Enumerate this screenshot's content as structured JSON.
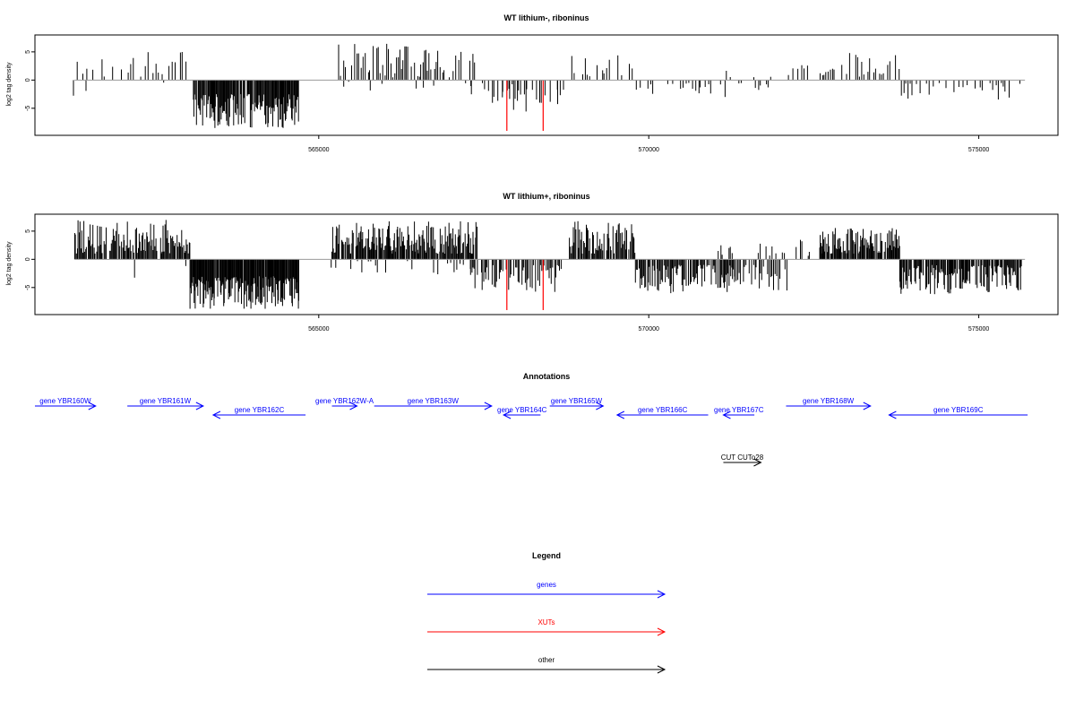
{
  "chart_data": [
    {
      "type": "bar",
      "title": "WT lithium-, riboninus",
      "ylabel": "log2 tag density",
      "xlim": [
        560700,
        576200
      ],
      "ylim": [
        -9.8,
        8
      ],
      "x_ticks": [
        565000,
        570000,
        575000
      ],
      "x_tick_labels": [
        "565000",
        "570000",
        "575000"
      ],
      "y_ticks": [
        5,
        0,
        -5
      ],
      "y_tick_labels": [
        "5",
        "0",
        "-5"
      ],
      "baseline": 0,
      "color": "#000000",
      "highlight_color": "#ff0000",
      "x_range": [
        561300,
        575700
      ],
      "highlights": [
        {
          "x": 567850,
          "value": -9.0
        },
        {
          "x": 568400,
          "value": -9.0
        }
      ],
      "segments": [
        {
          "from": 561300,
          "to": 562380,
          "sign": 1,
          "step": 45,
          "min": 0.5,
          "max": 4.5,
          "density": 0.55
        },
        {
          "from": 562380,
          "to": 563050,
          "sign": 1,
          "step": 40,
          "min": 1.0,
          "max": 5.0,
          "density": 0.65
        },
        {
          "from": 563100,
          "to": 564700,
          "sign": -1,
          "step": 12,
          "min": 2.5,
          "max": 8.5,
          "density": 0.95
        },
        {
          "from": 565300,
          "to": 566800,
          "sign": 1,
          "step": 25,
          "min": 0.5,
          "max": 6.5,
          "density": 0.75
        },
        {
          "from": 566800,
          "to": 567400,
          "sign": 1,
          "step": 35,
          "min": 0.5,
          "max": 5.0,
          "density": 0.55
        },
        {
          "from": 567300,
          "to": 568700,
          "sign": -1,
          "step": 45,
          "min": 0.5,
          "max": 4.0,
          "density": 0.4
        },
        {
          "from": 567500,
          "to": 568700,
          "sign": -1,
          "step": 40,
          "min": 1.5,
          "max": 6.0,
          "density": 0.55
        },
        {
          "from": 568800,
          "to": 569800,
          "sign": 1,
          "step": 38,
          "min": 0.5,
          "max": 4.5,
          "density": 0.55
        },
        {
          "from": 569800,
          "to": 571900,
          "sign": -1,
          "step": 38,
          "min": 0.5,
          "max": 3.2,
          "density": 0.5
        },
        {
          "from": 571000,
          "to": 572600,
          "sign": 1,
          "step": 45,
          "min": 0.5,
          "max": 2.8,
          "density": 0.35
        },
        {
          "from": 572600,
          "to": 573800,
          "sign": 1,
          "step": 30,
          "min": 0.5,
          "max": 5.0,
          "density": 0.65
        },
        {
          "from": 573800,
          "to": 575650,
          "sign": -1,
          "step": 32,
          "min": 0.5,
          "max": 3.5,
          "density": 0.5
        },
        {
          "from": 561300,
          "to": 563050,
          "sign": -1,
          "step": 90,
          "min": 0.3,
          "max": 3.0,
          "density": 0.12
        },
        {
          "from": 565300,
          "to": 567400,
          "sign": -1,
          "step": 80,
          "min": 0.3,
          "max": 2.0,
          "density": 0.15
        }
      ]
    },
    {
      "type": "bar",
      "title": "WT lithium+, riboninus",
      "ylabel": "log2 tag density",
      "xlim": [
        560700,
        576200
      ],
      "ylim": [
        -9.8,
        8
      ],
      "x_ticks": [
        565000,
        570000,
        575000
      ],
      "x_tick_labels": [
        "565000",
        "570000",
        "575000"
      ],
      "y_ticks": [
        5,
        0,
        -5
      ],
      "y_tick_labels": [
        "5",
        "0",
        "-5"
      ],
      "baseline": 0,
      "color": "#000000",
      "highlight_color": "#ff0000",
      "x_range": [
        561300,
        575700
      ],
      "highlights": [
        {
          "x": 567850,
          "value": -9.0
        },
        {
          "x": 568400,
          "value": -9.0
        }
      ],
      "segments": [
        {
          "from": 561300,
          "to": 563050,
          "sign": 1,
          "step": 14,
          "min": 1.0,
          "max": 7.0,
          "density": 0.9
        },
        {
          "from": 563050,
          "to": 564700,
          "sign": -1,
          "step": 10,
          "min": 3.0,
          "max": 8.8,
          "density": 0.97
        },
        {
          "from": 565200,
          "to": 567400,
          "sign": 1,
          "step": 12,
          "min": 1.0,
          "max": 6.8,
          "density": 0.9
        },
        {
          "from": 567300,
          "to": 568700,
          "sign": -1,
          "step": 18,
          "min": 1.0,
          "max": 6.0,
          "density": 0.75
        },
        {
          "from": 568800,
          "to": 569800,
          "sign": 1,
          "step": 14,
          "min": 1.0,
          "max": 6.8,
          "density": 0.9
        },
        {
          "from": 569800,
          "to": 571300,
          "sign": -1,
          "step": 14,
          "min": 1.0,
          "max": 6.0,
          "density": 0.85
        },
        {
          "from": 571300,
          "to": 572100,
          "sign": -1,
          "step": 22,
          "min": 1.0,
          "max": 6.0,
          "density": 0.6
        },
        {
          "from": 571000,
          "to": 572700,
          "sign": 1,
          "step": 30,
          "min": 0.5,
          "max": 3.5,
          "density": 0.4
        },
        {
          "from": 572600,
          "to": 573800,
          "sign": 1,
          "step": 12,
          "min": 1.0,
          "max": 5.6,
          "density": 0.9
        },
        {
          "from": 573800,
          "to": 575650,
          "sign": -1,
          "step": 12,
          "min": 1.0,
          "max": 6.2,
          "density": 0.9
        },
        {
          "from": 561300,
          "to": 563050,
          "sign": -1,
          "step": 70,
          "min": 0.3,
          "max": 3.5,
          "density": 0.15
        },
        {
          "from": 565200,
          "to": 567400,
          "sign": -1,
          "step": 50,
          "min": 0.3,
          "max": 3.0,
          "density": 0.3
        }
      ]
    }
  ],
  "annotations": {
    "title": "Annotations",
    "xlim": [
      560700,
      576200
    ],
    "color": "#0000ff",
    "genes": [
      {
        "label": "gene YBR160W",
        "start": 560700,
        "end": 561620,
        "strand": "+"
      },
      {
        "label": "gene YBR161W",
        "start": 562100,
        "end": 563250,
        "strand": "+"
      },
      {
        "label": "gene YBR162C",
        "start": 563400,
        "end": 564800,
        "strand": "-"
      },
      {
        "label": "gene YBR162W-A",
        "start": 565200,
        "end": 565580,
        "strand": "+"
      },
      {
        "label": "gene YBR163W",
        "start": 565840,
        "end": 567620,
        "strand": "+"
      },
      {
        "label": "gene YBR164C",
        "start": 567800,
        "end": 568360,
        "strand": "-"
      },
      {
        "label": "gene YBR165W",
        "start": 568500,
        "end": 569310,
        "strand": "+"
      },
      {
        "label": "gene YBR166C",
        "start": 569520,
        "end": 570900,
        "strand": "-"
      },
      {
        "label": "gene YBR167C",
        "start": 571130,
        "end": 571600,
        "strand": "-"
      },
      {
        "label": "gene YBR168W",
        "start": 572080,
        "end": 573360,
        "strand": "+"
      },
      {
        "label": "gene YBR169C",
        "start": 573640,
        "end": 575740,
        "strand": "-"
      }
    ],
    "other": [
      {
        "label": "CUT CUTo28",
        "start": 571130,
        "end": 571700,
        "strand": "+",
        "color": "#000000"
      }
    ]
  },
  "legend": {
    "title": "Legend",
    "items": [
      {
        "label": "genes",
        "color": "#0000ff"
      },
      {
        "label": "XUTs",
        "color": "#ff0000"
      },
      {
        "label": "other",
        "color": "#000000"
      }
    ]
  }
}
